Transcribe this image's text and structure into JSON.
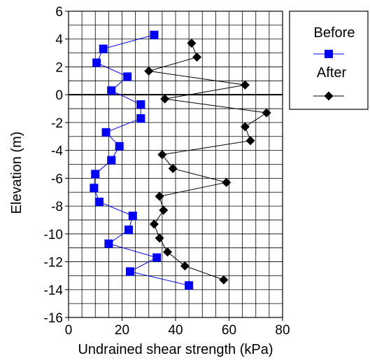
{
  "chart_data": {
    "type": "scatter",
    "xlabel": "Undrained shear strength (kPa)",
    "ylabel": "Elevation (m)",
    "xlim": [
      0,
      80
    ],
    "ylim": [
      -16,
      6
    ],
    "xticks": [
      0,
      20,
      40,
      60,
      80
    ],
    "yticks": [
      6,
      4,
      2,
      0,
      -2,
      -4,
      -6,
      -8,
      -10,
      -12,
      -14,
      -16
    ],
    "grid": true,
    "legend_position": "top-right outside",
    "colors": {
      "before": "#0000ff",
      "after": "#000000",
      "grid": "#000000"
    },
    "series": [
      {
        "name": "Before",
        "marker": "square",
        "points": [
          {
            "x": 32,
            "y": 4.3
          },
          {
            "x": 13,
            "y": 3.3
          },
          {
            "x": 10.5,
            "y": 2.3
          },
          {
            "x": 22,
            "y": 1.3
          },
          {
            "x": 16,
            "y": 0.3
          },
          {
            "x": 27,
            "y": -0.7
          },
          {
            "x": 27,
            "y": -1.7
          },
          {
            "x": 14,
            "y": -2.7
          },
          {
            "x": 19,
            "y": -3.7
          },
          {
            "x": 16,
            "y": -4.7
          },
          {
            "x": 10,
            "y": -5.7
          },
          {
            "x": 9.5,
            "y": -6.7
          },
          {
            "x": 11.5,
            "y": -7.7
          },
          {
            "x": 24,
            "y": -8.7
          },
          {
            "x": 22.5,
            "y": -9.7
          },
          {
            "x": 15,
            "y": -10.7
          },
          {
            "x": 33,
            "y": -11.7
          },
          {
            "x": 23,
            "y": -12.7
          },
          {
            "x": 45,
            "y": -13.7
          }
        ]
      },
      {
        "name": "After",
        "marker": "diamond",
        "points": [
          {
            "x": 46,
            "y": 3.7
          },
          {
            "x": 48,
            "y": 2.7
          },
          {
            "x": 30,
            "y": 1.7
          },
          {
            "x": 66,
            "y": 0.7
          },
          {
            "x": 36,
            "y": -0.3
          },
          {
            "x": 74,
            "y": -1.3
          },
          {
            "x": 66,
            "y": -2.3
          },
          {
            "x": 68,
            "y": -3.3
          },
          {
            "x": 35,
            "y": -4.3
          },
          {
            "x": 39,
            "y": -5.3
          },
          {
            "x": 59,
            "y": -6.3
          },
          {
            "x": 34,
            "y": -7.3
          },
          {
            "x": 35.5,
            "y": -8.3
          },
          {
            "x": 32,
            "y": -9.3
          },
          {
            "x": 34,
            "y": -10.3
          },
          {
            "x": 37,
            "y": -11.3
          },
          {
            "x": 43.5,
            "y": -12.3
          },
          {
            "x": 58,
            "y": -13.3
          }
        ]
      }
    ]
  }
}
